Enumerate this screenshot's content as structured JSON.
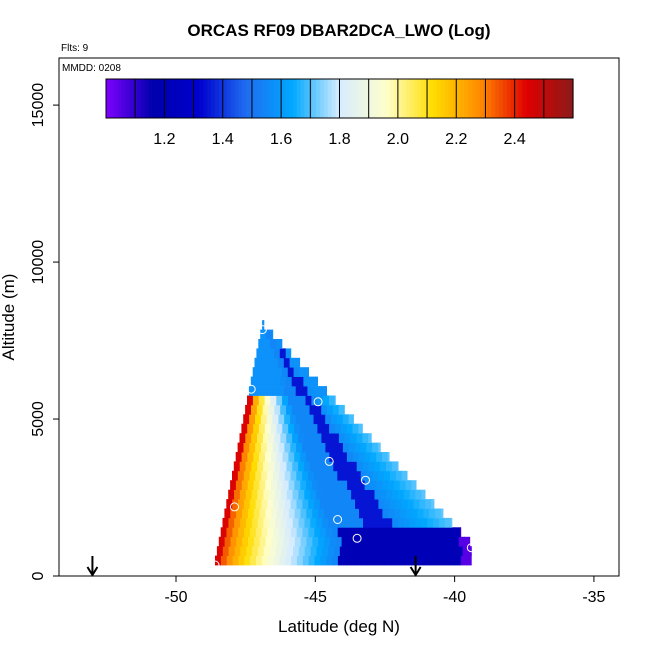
{
  "chart_data": {
    "type": "heatmap",
    "title": "ORCAS RF09 DBAR2DCA_LWO (Log)",
    "subtitle": "Flts: 9",
    "date_label": "MMDD: 0208",
    "xlabel": "Latitude (deg N)",
    "ylabel": "Altitude (m)",
    "xlim": [
      -54.2,
      -34.1
    ],
    "ylim": [
      0,
      16500
    ],
    "x_ticks": [
      -50,
      -45,
      -40,
      -35
    ],
    "y_ticks": [
      0,
      5000,
      10000,
      15000
    ],
    "colorbar": {
      "range": [
        1.0,
        2.6
      ],
      "ticks": [
        1.2,
        1.4,
        1.6,
        1.8,
        2.0,
        2.2,
        2.4
      ],
      "colors": [
        "#7f00ff",
        "#0000ae",
        "#0000cd",
        "#1f6df1",
        "#00a8ff",
        "#d6ecff",
        "#ffffcc",
        "#ffdd00",
        "#ff8c00",
        "#e00000",
        "#8b1a1a"
      ]
    },
    "cross_section": {
      "triangle_apex": [
        -46.9,
        7900
      ],
      "triangle_base_left": [
        -48.6,
        350
      ],
      "triangle_base_right": [
        -39.4,
        900
      ],
      "description_values": {
        "left_edge_value": 2.45,
        "interior_value": 1.55,
        "core_value": 1.35,
        "bottom_band_value": 1.2
      }
    },
    "profile_points": [
      {
        "lat": -46.9,
        "alt": 7850
      },
      {
        "lat": -47.3,
        "alt": 5950
      },
      {
        "lat": -44.9,
        "alt": 5550
      },
      {
        "lat": -44.5,
        "alt": 3650
      },
      {
        "lat": -43.2,
        "alt": 3050
      },
      {
        "lat": -47.9,
        "alt": 2200
      },
      {
        "lat": -44.2,
        "alt": 1800
      },
      {
        "lat": -43.5,
        "alt": 1200
      },
      {
        "lat": -39.9,
        "alt": 1850
      },
      {
        "lat": -48.6,
        "alt": 350
      },
      {
        "lat": -39.4,
        "alt": 900
      }
    ],
    "arrows": [
      {
        "lat": -53.0
      },
      {
        "lat": -41.4
      }
    ],
    "grid": false
  }
}
